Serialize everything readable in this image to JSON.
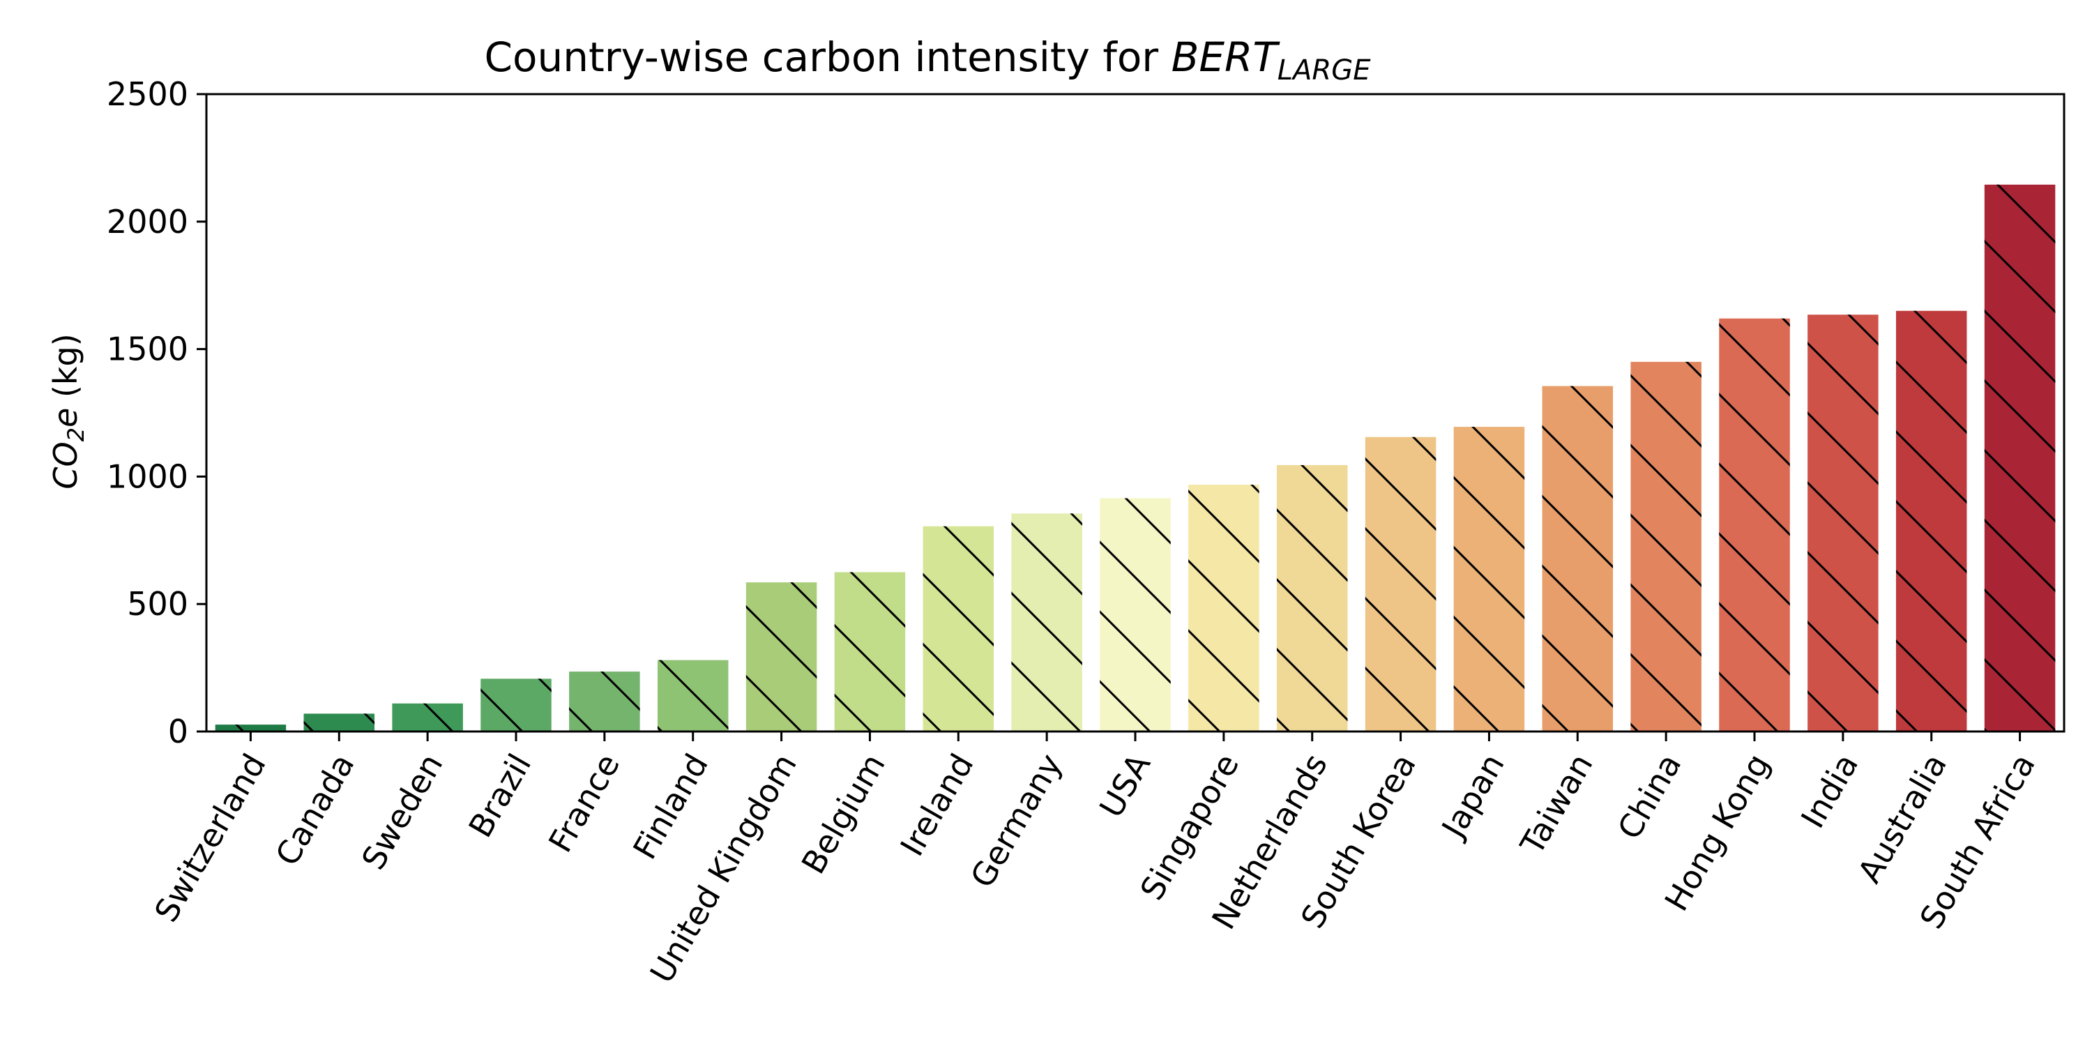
{
  "chart_data": {
    "type": "bar",
    "title": {
      "prefix": "Country-wise carbon intensity for ",
      "math_base": "BERT",
      "math_sub": "LARGE"
    },
    "ylabel": {
      "math_base": "CO",
      "math_sub": "2",
      "math_tail": "e",
      "suffix": " (kg)"
    },
    "xlabel": "",
    "ylim": [
      0,
      2500
    ],
    "yticks": [
      0,
      500,
      1000,
      1500,
      2000,
      2500
    ],
    "grid": false,
    "legend": "none",
    "hatch": "diagonal",
    "categories": [
      "Switzerland",
      "Canada",
      "Sweden",
      "Brazil",
      "France",
      "Finland",
      "United Kingdom",
      "Belgium",
      "Ireland",
      "Germany",
      "USA",
      "Singapore",
      "Netherlands",
      "South Korea",
      "Japan",
      "Taiwan",
      "China",
      "Hong Kong",
      "India",
      "Australia",
      "South Africa"
    ],
    "values": [
      27,
      70,
      110,
      207,
      235,
      280,
      585,
      625,
      805,
      855,
      915,
      968,
      1045,
      1155,
      1195,
      1355,
      1450,
      1620,
      1635,
      1650,
      2145
    ],
    "colors": [
      "#1e7b45",
      "#2e8b50",
      "#3f9a5a",
      "#5ca966",
      "#75b46d",
      "#8fc374",
      "#a9cc79",
      "#c1dd89",
      "#d4e696",
      "#e4eeb0",
      "#f5f6c5",
      "#f5e7a6",
      "#f0d896",
      "#efc587",
      "#ebb177",
      "#e89e6a",
      "#e2855f",
      "#db6a54",
      "#cf5249",
      "#bf3a3c",
      "#a92535"
    ]
  }
}
